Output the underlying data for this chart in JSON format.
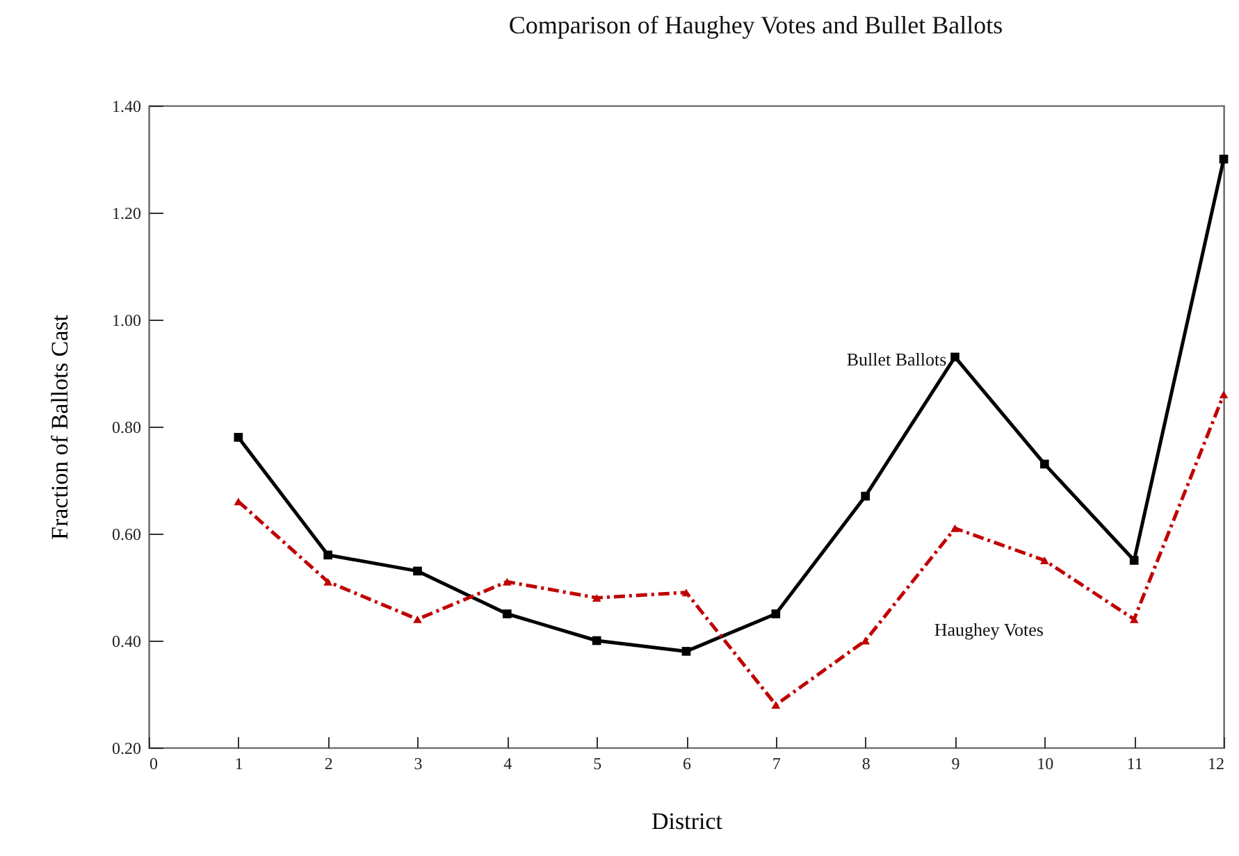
{
  "chart_data": {
    "type": "line",
    "title": "Comparison of Haughey Votes and Bullet Ballots",
    "xlabel": "District",
    "ylabel": "Fraction of Ballots Cast",
    "x": [
      1,
      2,
      3,
      4,
      5,
      6,
      7,
      8,
      9,
      10,
      11,
      12
    ],
    "series": [
      {
        "name": "Bullet Ballots",
        "color": "#000000",
        "marker": "square",
        "line_style": "solid",
        "values": [
          0.78,
          0.56,
          0.53,
          0.45,
          0.4,
          0.38,
          0.45,
          0.67,
          0.93,
          0.73,
          0.55,
          1.3
        ]
      },
      {
        "name": "Haughey Votes",
        "color": "#c00000",
        "marker": "triangle",
        "line_style": "dashed",
        "values": [
          0.66,
          0.51,
          0.44,
          0.51,
          0.48,
          0.49,
          0.28,
          0.4,
          0.61,
          0.55,
          0.44,
          0.86
        ]
      }
    ],
    "xlim": [
      0,
      12
    ],
    "xticks": [
      0,
      1,
      2,
      3,
      4,
      5,
      6,
      7,
      8,
      9,
      10,
      11,
      12
    ],
    "ylim": [
      0.2,
      1.4
    ],
    "yticks": [
      {
        "value": 0.2,
        "label": "0.20"
      },
      {
        "value": 0.4,
        "label": "0.40"
      },
      {
        "value": 0.6,
        "label": "0.60"
      },
      {
        "value": 0.8,
        "label": "0.80"
      },
      {
        "value": 1.0,
        "label": "1.00"
      },
      {
        "value": 1.2,
        "label": "1.20"
      },
      {
        "value": 1.4,
        "label": "1.40"
      }
    ],
    "grid": false
  }
}
